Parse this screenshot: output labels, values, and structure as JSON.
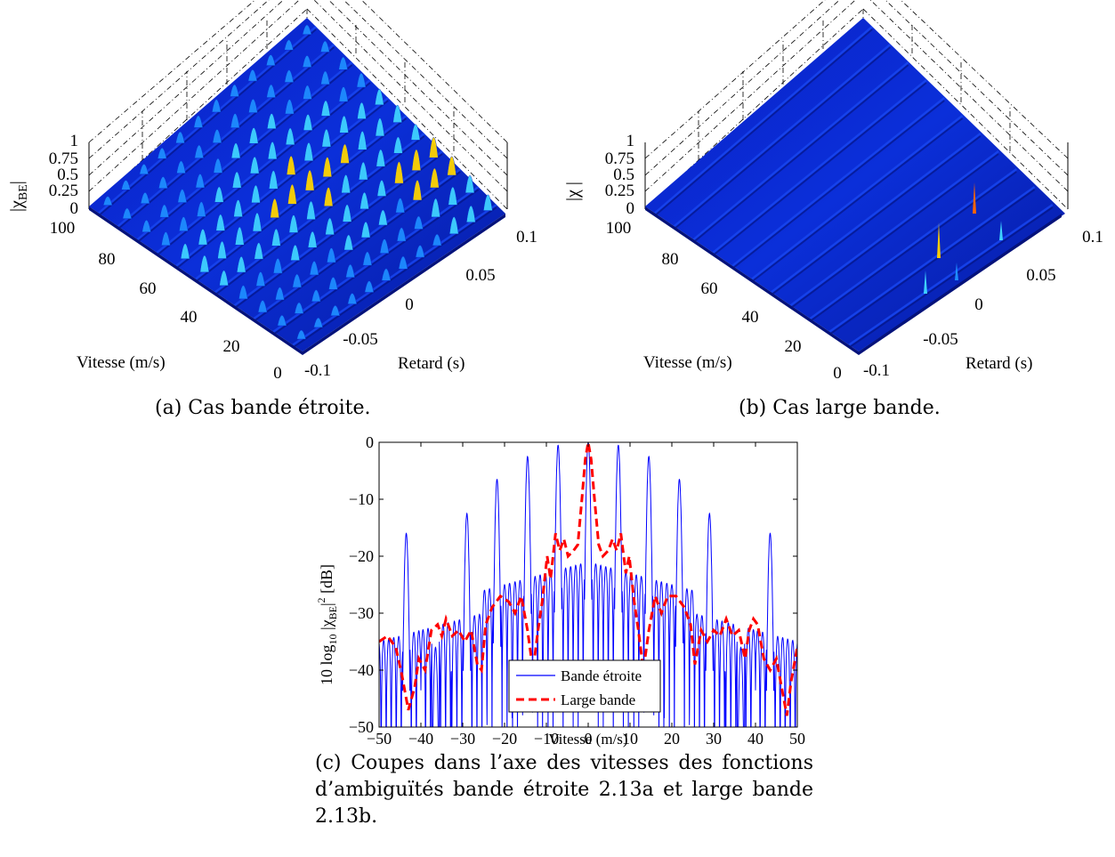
{
  "panel_a": {
    "caption": "(a) Cas bande étroite.",
    "zlabel_main": "|χ",
    "zlabel_sub": "BE",
    "zlabel_end": "|",
    "xlabel": "Vitesse (m/s)",
    "ylabel": "Retard (s)",
    "z_ticks": [
      "1",
      "0.75",
      "0.5",
      "0.25",
      "0"
    ],
    "x_ticks": [
      "100",
      "80",
      "60",
      "40",
      "20",
      "0"
    ],
    "y_ticks": [
      "-0.1",
      "-0.05",
      "0",
      "0.05",
      "0.1"
    ]
  },
  "panel_b": {
    "caption": "(b) Cas large bande.",
    "zlabel_main": "|χ |",
    "xlabel": "Vitesse (m/s)",
    "ylabel": "Retard (s)",
    "z_ticks": [
      "1",
      "0.75",
      "0.5",
      "0.25",
      "0"
    ],
    "x_ticks": [
      "100",
      "80",
      "60",
      "40",
      "20",
      "0"
    ],
    "y_ticks": [
      "-0.1",
      "-0.05",
      "0",
      "0.05",
      "0.1"
    ]
  },
  "panel_c": {
    "caption": "(c) Coupes dans l’axe des vitesses des fonctions d’ambiguïtés bande étroite 2.13a et large bande 2.13b.",
    "ylabel_prefix": "10 log",
    "ylabel_sub10": "10",
    "ylabel_mid": " |χ",
    "ylabel_subBE": "BE",
    "ylabel_end": "|",
    "ylabel_sup": "2",
    "ylabel_unit": " [dB]",
    "legend_position": "bottom-center"
  },
  "chart_data": [
    {
      "type": "surface",
      "title": "",
      "xlabel": "Vitesse (m/s)",
      "ylabel": "Retard (s)",
      "zlabel": "|χBE|",
      "xlim": [
        0,
        100
      ],
      "ylim": [
        -0.1,
        0.1
      ],
      "zlim": [
        0,
        1
      ],
      "ridges": 11,
      "peak_value": 1,
      "colormap": "jet"
    },
    {
      "type": "surface",
      "title": "",
      "xlabel": "Vitesse (m/s)",
      "ylabel": "Retard (s)",
      "zlabel": "|χ|",
      "xlim": [
        0,
        100
      ],
      "ylim": [
        -0.1,
        0.1
      ],
      "zlim": [
        0,
        1
      ],
      "ridges": 11,
      "peak_value": 1,
      "colormap": "jet"
    },
    {
      "type": "line",
      "title": "",
      "xlabel": "Vitesse (m/s)",
      "ylabel": "10 log10 |χBE|2 [dB]",
      "xlim": [
        -50,
        50
      ],
      "ylim": [
        -50,
        0
      ],
      "x_ticks": [
        -50,
        -40,
        -30,
        -20,
        -10,
        0,
        10,
        20,
        30,
        40,
        50
      ],
      "y_ticks": [
        0,
        -10,
        -20,
        -30,
        -40,
        -50
      ],
      "grid": false,
      "series": [
        {
          "name": "Bande étroite",
          "color": "#0000ff",
          "style": "solid",
          "peaks": [
            {
              "x": -43.5,
              "y": -16
            },
            {
              "x": -36.5,
              "y": -36
            },
            {
              "x": -29,
              "y": -12.5
            },
            {
              "x": -21.8,
              "y": -6.5
            },
            {
              "x": -14.5,
              "y": -2.5
            },
            {
              "x": -7.2,
              "y": -0.5
            },
            {
              "x": 0,
              "y": 0
            },
            {
              "x": 7.2,
              "y": -0.5
            },
            {
              "x": 14.5,
              "y": -2.5
            },
            {
              "x": 21.8,
              "y": -6.5
            },
            {
              "x": 29,
              "y": -12.5
            },
            {
              "x": 36.5,
              "y": -36
            },
            {
              "x": 43.5,
              "y": -16
            }
          ],
          "sidelobe_level": -25,
          "floor": -50
        },
        {
          "name": "Large bande",
          "color": "#ff0000",
          "style": "dashed",
          "points": [
            [
              -50,
              -35
            ],
            [
              -48,
              -34
            ],
            [
              -46,
              -36
            ],
            [
              -44.5,
              -41
            ],
            [
              -43,
              -47
            ],
            [
              -41.5,
              -43
            ],
            [
              -40.5,
              -38
            ],
            [
              -39,
              -40
            ],
            [
              -37.5,
              -33
            ],
            [
              -36,
              -32
            ],
            [
              -35,
              -34
            ],
            [
              -34,
              -31
            ],
            [
              -32.5,
              -34
            ],
            [
              -31,
              -33
            ],
            [
              -29.5,
              -35
            ],
            [
              -28,
              -33
            ],
            [
              -26.5,
              -39
            ],
            [
              -25.5,
              -40
            ],
            [
              -24.5,
              -32
            ],
            [
              -23,
              -29
            ],
            [
              -21,
              -27
            ],
            [
              -19,
              -28
            ],
            [
              -17.5,
              -30
            ],
            [
              -16,
              -27
            ],
            [
              -14.5,
              -33
            ],
            [
              -13.2,
              -40
            ],
            [
              -12,
              -33
            ],
            [
              -11,
              -28
            ],
            [
              -9.8,
              -20
            ],
            [
              -9,
              -24
            ],
            [
              -7.8,
              -16
            ],
            [
              -6.8,
              -19
            ],
            [
              -5.8,
              -17
            ],
            [
              -4.8,
              -20
            ],
            [
              -3.5,
              -19
            ],
            [
              -2.5,
              -18
            ],
            [
              -1.5,
              -10
            ],
            [
              -0.7,
              -3
            ],
            [
              0,
              0
            ],
            [
              0.7,
              -3
            ],
            [
              1.5,
              -10
            ],
            [
              2.5,
              -18
            ],
            [
              3.5,
              -20
            ],
            [
              4.8,
              -19
            ],
            [
              5.8,
              -17
            ],
            [
              6.8,
              -19
            ],
            [
              7.8,
              -16
            ],
            [
              9,
              -23
            ],
            [
              9.8,
              -20
            ],
            [
              11,
              -28
            ],
            [
              12,
              -33
            ],
            [
              13.2,
              -40
            ],
            [
              14.5,
              -33
            ],
            [
              16,
              -27
            ],
            [
              17.5,
              -30
            ],
            [
              19,
              -27
            ],
            [
              21,
              -27
            ],
            [
              23,
              -29
            ],
            [
              24.5,
              -32
            ],
            [
              25.5,
              -39
            ],
            [
              27,
              -33
            ],
            [
              28.5,
              -35
            ],
            [
              30,
              -33
            ],
            [
              31.5,
              -34
            ],
            [
              33,
              -31
            ],
            [
              34.5,
              -34
            ],
            [
              36,
              -33
            ],
            [
              37.5,
              -38
            ],
            [
              38.5,
              -33
            ],
            [
              39.5,
              -31
            ],
            [
              40.5,
              -32
            ],
            [
              42,
              -38
            ],
            [
              43.5,
              -40
            ],
            [
              45,
              -38
            ],
            [
              46.5,
              -44
            ],
            [
              47.5,
              -48
            ],
            [
              48.5,
              -42
            ],
            [
              50,
              -36
            ]
          ]
        }
      ]
    }
  ]
}
